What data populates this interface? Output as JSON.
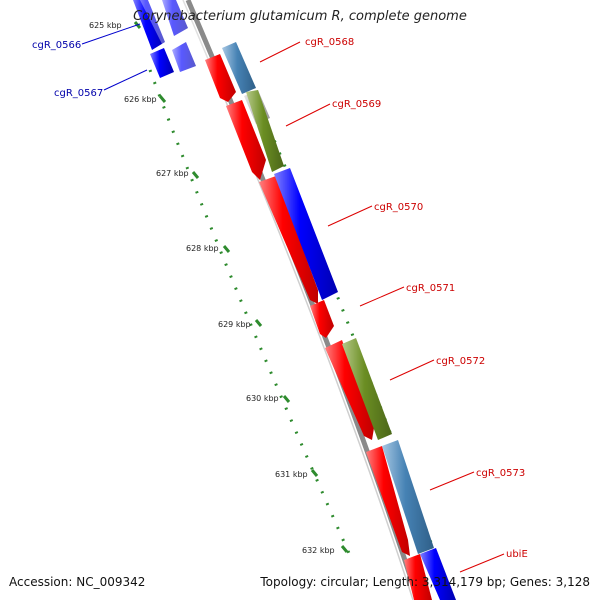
{
  "title": "Corynebacterium glutamicum R, complete genome",
  "footer": {
    "accession": "Accession: NC_009342",
    "topology": "Topology: circular; Length: 3,314,179 bp; Genes: 3,128"
  },
  "colors": {
    "backbone": "#888888",
    "tick": "#2e8b2e",
    "forward_gene": "#ff0000",
    "reverse_gene": "#0000ff",
    "steelblue_feature": "#4682b4",
    "olive_feature": "#6b8e23",
    "label_forward": "#cc0000",
    "label_reverse": "#0000aa"
  },
  "scale_labels": [
    "625 kbp",
    "626 kbp",
    "627 kbp",
    "628 kbp",
    "629 kbp",
    "630 kbp",
    "631 kbp",
    "632 kbp"
  ],
  "gene_labels": [
    {
      "text": "cgR_0566",
      "strand": "reverse"
    },
    {
      "text": "cgR_0567",
      "strand": "reverse"
    },
    {
      "text": "cgR_0568",
      "strand": "forward"
    },
    {
      "text": "cgR_0569",
      "strand": "forward"
    },
    {
      "text": "cgR_0570",
      "strand": "forward"
    },
    {
      "text": "cgR_0571",
      "strand": "forward"
    },
    {
      "text": "cgR_0572",
      "strand": "forward"
    },
    {
      "text": "cgR_0573",
      "strand": "forward"
    },
    {
      "text": "ubiE",
      "strand": "forward"
    }
  ]
}
